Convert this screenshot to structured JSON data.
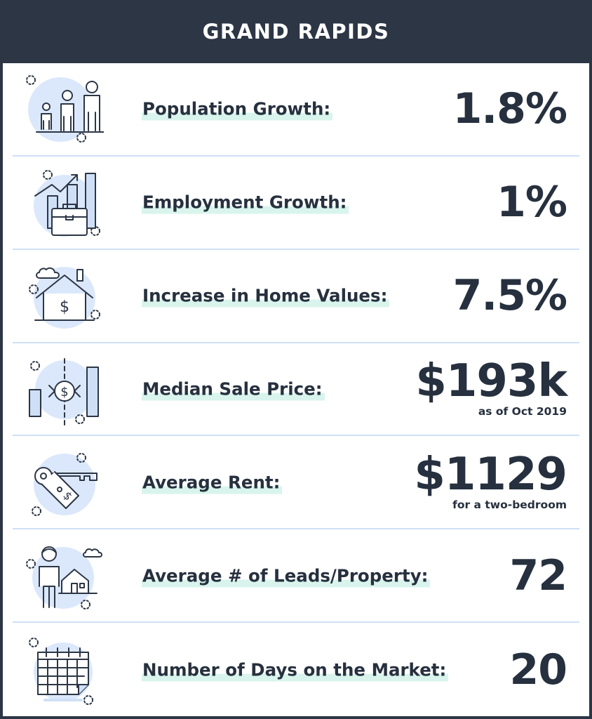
{
  "header": {
    "title": "GRAND RAPIDS"
  },
  "rows": [
    {
      "icon": "people-icon",
      "label": "Population Growth:",
      "value": "1.8%"
    },
    {
      "icon": "briefcase-chart-icon",
      "label": "Employment Growth:",
      "value": "1%"
    },
    {
      "icon": "house-dollar-icon",
      "label": "Increase in Home Values:",
      "value": "7.5%"
    },
    {
      "icon": "price-chart-icon",
      "label": "Median Sale Price:",
      "value": "$193k",
      "note": "as  of Oct 2019"
    },
    {
      "icon": "key-tag-icon",
      "label": "Average Rent:",
      "value": "$1129",
      "note": "for a two-bedroom"
    },
    {
      "icon": "person-house-icon",
      "label": "Average # of Leads/Property:",
      "value": "72"
    },
    {
      "icon": "calendar-icon",
      "label": "Number of Days on the Market:",
      "value": "20"
    }
  ],
  "colors": {
    "header_bg": "#2c3645",
    "text": "#26303e",
    "highlight": "#d9f4ec",
    "divider": "#cfe0f6",
    "icon_fill": "#dbe8fb"
  }
}
